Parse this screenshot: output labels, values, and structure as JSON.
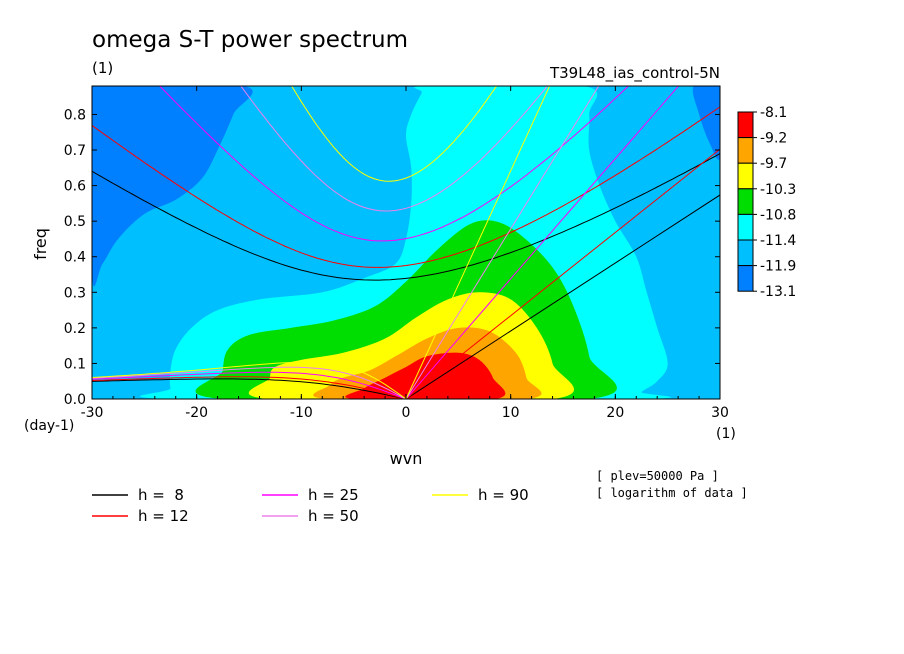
{
  "chart_data": {
    "type": "heatmap",
    "title": "omega S-T power spectrum",
    "units_label": "(1)",
    "experiment": "T39L48_ias_control-5N",
    "xlabel": "wvn",
    "ylabel": "freq",
    "x_units": "(1)",
    "y_units": "(day-1)",
    "xlim": [
      -30,
      30
    ],
    "ylim": [
      0,
      0.88
    ],
    "xticks": [
      -30,
      -20,
      -10,
      0,
      10,
      20,
      30
    ],
    "xtick_labels": [
      "-30",
      "-20",
      "-10",
      "0",
      "10",
      "20",
      "30"
    ],
    "yticks": [
      0.0,
      0.1,
      0.2,
      0.3,
      0.4,
      0.5,
      0.6,
      0.7,
      0.8
    ],
    "ytick_labels": [
      "0.0",
      "0.1",
      "0.2",
      "0.3",
      "0.4",
      "0.5",
      "0.6",
      "0.7",
      "0.8"
    ],
    "colorbar": {
      "labels": [
        "-8.1",
        "-9.2",
        "-9.7",
        "-10.3",
        "-10.8",
        "-11.4",
        "-11.9",
        "-13.1"
      ],
      "colors": [
        "#ff0000",
        "#ffa500",
        "#ffff00",
        "#00dd00",
        "#00ffff",
        "#00bfff",
        "#0080ff"
      ]
    },
    "fill_colors": {
      "background": "#00bfff",
      "darkest": "#0080ff",
      "cyan": "#00ffff",
      "green": "#00dd00",
      "yellow": "#ffff00",
      "orange": "#ffa500",
      "red": "#ff0000"
    },
    "contour_regions": [
      {
        "level": "-11.9",
        "color": "#0080ff",
        "polygon": [
          [
            -30,
            0.88
          ],
          [
            -15.5,
            0.88
          ],
          [
            -16.5,
            0.8
          ],
          [
            -18,
            0.7
          ],
          [
            -19.5,
            0.62
          ],
          [
            -22,
            0.56
          ],
          [
            -25,
            0.52
          ],
          [
            -27.5,
            0.45
          ],
          [
            -29,
            0.38
          ],
          [
            -30,
            0.35
          ]
        ]
      },
      {
        "level": "-11.9",
        "color": "#0080ff",
        "polygon": [
          [
            30,
            0.88
          ],
          [
            27.5,
            0.88
          ],
          [
            28,
            0.8
          ],
          [
            29,
            0.72
          ],
          [
            30,
            0.68
          ]
        ]
      },
      {
        "level": "-11.4",
        "color": "#00ffff",
        "polygon": [
          [
            -22.5,
            0.08
          ],
          [
            -22,
            0.14
          ],
          [
            -20.5,
            0.2
          ],
          [
            -18,
            0.25
          ],
          [
            -14,
            0.28
          ],
          [
            -8,
            0.3
          ],
          [
            -4,
            0.34
          ],
          [
            -1,
            0.38
          ],
          [
            0,
            0.45
          ],
          [
            0.5,
            0.55
          ],
          [
            0.5,
            0.65
          ],
          [
            0,
            0.74
          ],
          [
            0.5,
            0.8
          ],
          [
            1.5,
            0.86
          ],
          [
            2,
            0.88
          ],
          [
            17,
            0.88
          ],
          [
            17.5,
            0.8
          ],
          [
            17.5,
            0.7
          ],
          [
            18.5,
            0.6
          ],
          [
            20,
            0.5
          ],
          [
            22,
            0.4
          ],
          [
            23,
            0.3
          ],
          [
            24,
            0.2
          ],
          [
            25,
            0.1
          ],
          [
            24,
            0.05
          ],
          [
            22.5,
            0.02
          ],
          [
            22,
            0
          ],
          [
            -22,
            0
          ],
          [
            -22.5,
            0.03
          ]
        ]
      },
      {
        "level": "-10.8",
        "color": "#00dd00",
        "polygon": [
          [
            -17.5,
            0
          ],
          [
            -17.5,
            0.08
          ],
          [
            -17,
            0.14
          ],
          [
            -15,
            0.18
          ],
          [
            -11,
            0.2
          ],
          [
            -7,
            0.22
          ],
          [
            -3,
            0.26
          ],
          [
            0,
            0.33
          ],
          [
            3,
            0.42
          ],
          [
            6,
            0.49
          ],
          [
            8.5,
            0.5
          ],
          [
            11,
            0.46
          ],
          [
            14,
            0.37
          ],
          [
            16,
            0.26
          ],
          [
            17.5,
            0.12
          ],
          [
            17.5,
            0
          ]
        ]
      },
      {
        "level": "-10.3",
        "color": "#ffff00",
        "polygon": [
          [
            -13,
            0
          ],
          [
            -13,
            0.06
          ],
          [
            -12.5,
            0.09
          ],
          [
            -10,
            0.11
          ],
          [
            -6,
            0.13
          ],
          [
            -2,
            0.17
          ],
          [
            1,
            0.23
          ],
          [
            4,
            0.28
          ],
          [
            7,
            0.3
          ],
          [
            10,
            0.28
          ],
          [
            12.5,
            0.2
          ],
          [
            14,
            0.1
          ],
          [
            14,
            0
          ]
        ]
      },
      {
        "level": "-9.7",
        "color": "#ffa500",
        "polygon": [
          [
            -7.5,
            0
          ],
          [
            -7.2,
            0.04
          ],
          [
            -6,
            0.06
          ],
          [
            -3.5,
            0.08
          ],
          [
            -1,
            0.12
          ],
          [
            2,
            0.17
          ],
          [
            5,
            0.2
          ],
          [
            8,
            0.19
          ],
          [
            10.5,
            0.13
          ],
          [
            11.5,
            0.06
          ],
          [
            11.5,
            0
          ]
        ]
      },
      {
        "level": "-9.2",
        "color": "#ff0000",
        "polygon": [
          [
            -5,
            0
          ],
          [
            -4,
            0.03
          ],
          [
            -2,
            0.06
          ],
          [
            0,
            0.09
          ],
          [
            2,
            0.12
          ],
          [
            5,
            0.13
          ],
          [
            7,
            0.11
          ],
          [
            8.3,
            0.06
          ],
          [
            8.5,
            0
          ]
        ]
      }
    ],
    "dispersion_legend": [
      {
        "label": "h =  8",
        "color": "#000000"
      },
      {
        "label": "h = 12",
        "color": "#ff0000"
      },
      {
        "label": "h = 25",
        "color": "#ff00ff"
      },
      {
        "label": "h = 50",
        "color": "#ee82ee"
      },
      {
        "label": "h = 90",
        "color": "#ffff00"
      }
    ],
    "equivalent_depths_m": [
      8,
      12,
      25,
      50,
      90
    ],
    "dispersion_line_colors": [
      "#000000",
      "#ff0000",
      "#ff00ff",
      "#ee82ee",
      "#ffff00"
    ],
    "annotations": [
      "[ plev=50000 Pa ]",
      "[ logarithm of data ]"
    ]
  }
}
